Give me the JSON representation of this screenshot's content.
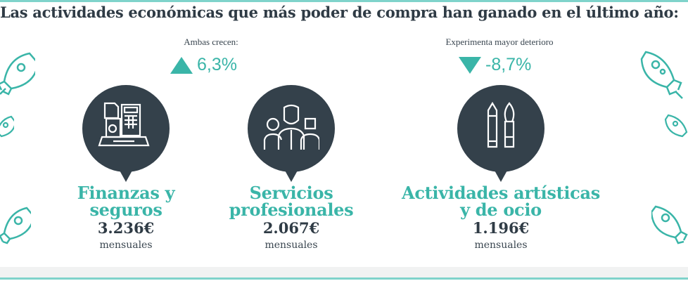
{
  "title": "Las actividades económicas que más poder de compra han ganado en el último año:",
  "growth": {
    "note": "Ambas crecen:",
    "value": "6,3%",
    "direction": "up"
  },
  "decline": {
    "note": "Experimenta mayor deterioro",
    "value": "-8,7%",
    "direction": "down"
  },
  "activities": [
    {
      "name_line1": "Finanzas y",
      "name_line2": "seguros",
      "amount": "3.236€",
      "unit": "mensuales",
      "icon": "calculator-computer-icon"
    },
    {
      "name_line1": "Servicios",
      "name_line2": "profesionales",
      "amount": "2.067€",
      "unit": "mensuales",
      "icon": "professionals-group-icon"
    },
    {
      "name_line1": "Actividades artísticas",
      "name_line2": "y de ocio",
      "amount": "1.196€",
      "unit": "mensuales",
      "icon": "pencil-brush-icon"
    }
  ],
  "colors": {
    "accent": "#3ab5a8",
    "bubble": "#34414b",
    "text": "#2f3b45"
  }
}
